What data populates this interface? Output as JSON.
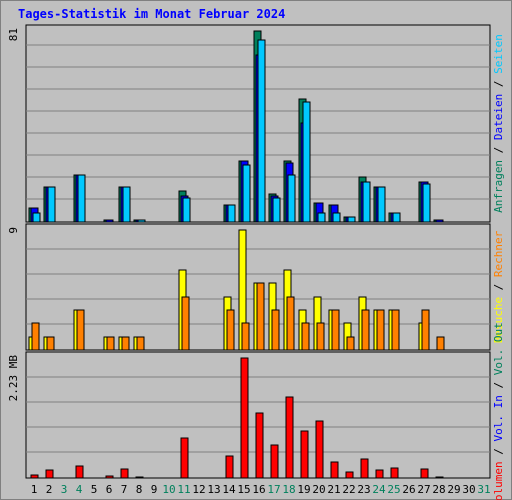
{
  "title": "Tages-Statistik im Monat Februar 2024",
  "colors": {
    "frame_bg": "#c0c0c0",
    "title": "#0000ff",
    "grid": "#808080",
    "weekend_label": "#00805c",
    "weekday_label": "#000000",
    "anfragen": "#00805c",
    "dateien": "#0000ff",
    "seiten": "#00c8ff",
    "besuche": "#ffff00",
    "rechner": "#ff8000",
    "vol_in": "#0000ff",
    "vol_out": "#00805c",
    "volumen": "#ff0000"
  },
  "chart_data": [
    {
      "type": "bar",
      "panel": "top",
      "y_max_label": "81",
      "ylim": [
        0,
        81
      ],
      "grid": true,
      "legend_position": "right-vertical",
      "categories": [
        "1",
        "2",
        "3",
        "4",
        "5",
        "6",
        "7",
        "8",
        "9",
        "10",
        "11",
        "12",
        "13",
        "14",
        "15",
        "16",
        "17",
        "18",
        "19",
        "20",
        "21",
        "22",
        "23",
        "24",
        "25",
        "26",
        "27",
        "28",
        "29",
        "30",
        "31"
      ],
      "legend": [
        {
          "label": "Anfragen",
          "color_key": "anfragen"
        },
        {
          "label": "Dateien",
          "color_key": "dateien"
        },
        {
          "label": "Seiten",
          "color_key": "seiten"
        }
      ],
      "series": [
        {
          "name": "Anfragen",
          "color_key": "anfragen",
          "values": [
            6,
            15,
            0,
            20,
            0,
            1,
            15,
            1,
            0,
            0,
            13,
            0,
            0,
            7,
            26,
            81,
            12,
            26,
            52,
            8,
            7,
            2,
            19,
            15,
            4,
            0,
            17,
            1,
            0,
            0,
            0
          ]
        },
        {
          "name": "Dateien",
          "color_key": "dateien",
          "values": [
            6,
            15,
            0,
            20,
            0,
            1,
            15,
            1,
            0,
            0,
            11,
            0,
            0,
            7,
            26,
            71,
            11,
            25,
            42,
            8,
            7,
            2,
            17,
            15,
            4,
            0,
            17,
            1,
            0,
            0,
            0
          ]
        },
        {
          "name": "Seiten",
          "color_key": "seiten",
          "values": [
            4,
            15,
            0,
            20,
            0,
            0,
            15,
            1,
            0,
            0,
            10,
            0,
            0,
            7,
            24,
            77,
            10,
            20,
            51,
            4,
            4,
            2,
            17,
            15,
            4,
            0,
            16,
            0,
            0,
            0,
            0
          ]
        }
      ]
    },
    {
      "type": "bar",
      "panel": "middle",
      "y_max_label": "9",
      "ylim": [
        0,
        9
      ],
      "grid": true,
      "legend_position": "right-vertical",
      "categories": [
        "1",
        "2",
        "3",
        "4",
        "5",
        "6",
        "7",
        "8",
        "9",
        "10",
        "11",
        "12",
        "13",
        "14",
        "15",
        "16",
        "17",
        "18",
        "19",
        "20",
        "21",
        "22",
        "23",
        "24",
        "25",
        "26",
        "27",
        "28",
        "29",
        "30",
        "31"
      ],
      "legend": [
        {
          "label": "Besuche",
          "color_key": "besuche"
        },
        {
          "label": "Rechner",
          "color_key": "rechner"
        }
      ],
      "series": [
        {
          "name": "Besuche",
          "color_key": "besuche",
          "values": [
            1,
            1,
            0,
            3,
            0,
            1,
            1,
            1,
            0,
            0,
            6,
            0,
            0,
            4,
            9,
            5,
            5,
            6,
            3,
            4,
            3,
            2,
            4,
            3,
            3,
            0,
            2,
            0,
            0,
            0,
            0
          ]
        },
        {
          "name": "Rechner",
          "color_key": "rechner",
          "values": [
            2,
            1,
            0,
            3,
            0,
            1,
            1,
            1,
            0,
            0,
            4,
            0,
            0,
            3,
            2,
            5,
            3,
            4,
            2,
            2,
            3,
            1,
            3,
            3,
            3,
            0,
            3,
            1,
            0,
            0,
            0
          ]
        }
      ]
    },
    {
      "type": "bar",
      "panel": "bottom",
      "y_max_label": "2.23 MB",
      "ylim": [
        0,
        2.23
      ],
      "grid": true,
      "legend_position": "right-vertical",
      "categories": [
        "1",
        "2",
        "3",
        "4",
        "5",
        "6",
        "7",
        "8",
        "9",
        "10",
        "11",
        "12",
        "13",
        "14",
        "15",
        "16",
        "17",
        "18",
        "19",
        "20",
        "21",
        "22",
        "23",
        "24",
        "25",
        "26",
        "27",
        "28",
        "29",
        "30",
        "31"
      ],
      "legend": [
        {
          "label": "Volumen",
          "color_key": "volumen"
        },
        {
          "label": "Vol. In",
          "color_key": "vol_in"
        },
        {
          "label": "Vol. Out",
          "color_key": "vol_out"
        }
      ],
      "series": [
        {
          "name": "Volumen",
          "color_key": "volumen",
          "values": [
            0.06,
            0.15,
            0,
            0.22,
            0,
            0.03,
            0.17,
            0.02,
            0,
            0,
            0.74,
            0,
            0,
            0.4,
            2.23,
            1.2,
            0.62,
            1.5,
            0.88,
            1.05,
            0.3,
            0.12,
            0.35,
            0.15,
            0.18,
            0,
            0.17,
            0.02,
            0,
            0,
            0
          ]
        }
      ]
    }
  ],
  "x_axis": {
    "labels": [
      "1",
      "2",
      "3",
      "4",
      "5",
      "6",
      "7",
      "8",
      "9",
      "10",
      "11",
      "12",
      "13",
      "14",
      "15",
      "16",
      "17",
      "18",
      "19",
      "20",
      "21",
      "22",
      "23",
      "24",
      "25",
      "26",
      "27",
      "28",
      "29",
      "30",
      "31"
    ],
    "weekend": [
      false,
      false,
      true,
      true,
      false,
      false,
      false,
      false,
      false,
      true,
      true,
      false,
      false,
      false,
      false,
      false,
      true,
      true,
      false,
      false,
      false,
      false,
      false,
      true,
      true,
      false,
      false,
      false,
      false,
      false,
      true
    ]
  }
}
